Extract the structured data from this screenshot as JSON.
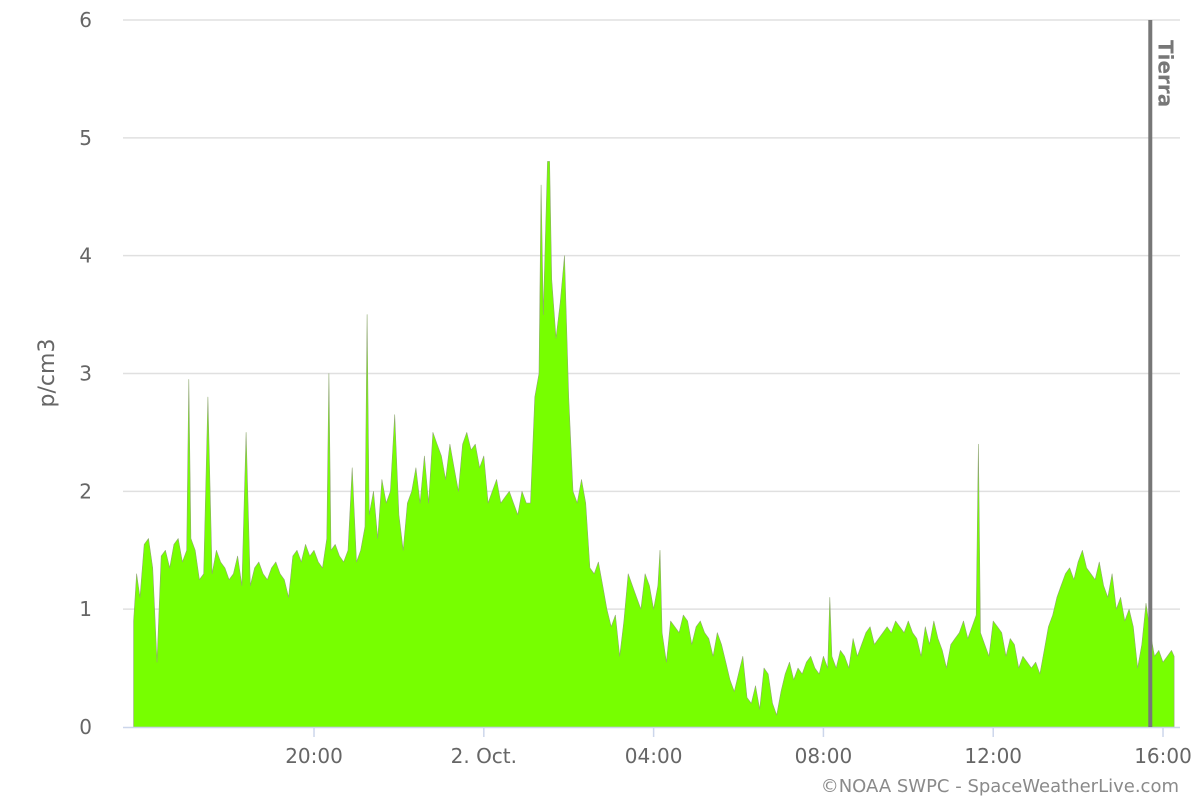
{
  "chart_data": {
    "type": "area",
    "title": "",
    "xlabel": "",
    "ylabel": "p/cm3",
    "ylim": [
      0,
      6
    ],
    "y_ticks": [
      "0",
      "1",
      "2",
      "3",
      "4",
      "5",
      "6"
    ],
    "x_range_hours": [
      15.5,
      40.4
    ],
    "x_ticks": [
      {
        "label": "20:00",
        "hour": 20
      },
      {
        "label": "2. Oct.",
        "hour": 24
      },
      {
        "label": "04:00",
        "hour": 28
      },
      {
        "label": "08:00",
        "hour": 32
      },
      {
        "label": "12:00",
        "hour": 36
      },
      {
        "label": "16:00",
        "hour": 40
      }
    ],
    "grid": true,
    "legend": "none",
    "series": [
      {
        "color": "#77ff00",
        "data": [
          [
            15.75,
            0.9
          ],
          [
            15.82,
            1.3
          ],
          [
            15.9,
            1.1
          ],
          [
            16.0,
            1.55
          ],
          [
            16.1,
            1.6
          ],
          [
            16.2,
            1.35
          ],
          [
            16.3,
            0.55
          ],
          [
            16.4,
            1.45
          ],
          [
            16.5,
            1.5
          ],
          [
            16.6,
            1.35
          ],
          [
            16.7,
            1.55
          ],
          [
            16.8,
            1.6
          ],
          [
            16.9,
            1.4
          ],
          [
            17.0,
            1.5
          ],
          [
            17.05,
            2.95
          ],
          [
            17.1,
            1.6
          ],
          [
            17.2,
            1.5
          ],
          [
            17.3,
            1.25
          ],
          [
            17.4,
            1.3
          ],
          [
            17.5,
            2.8
          ],
          [
            17.6,
            1.3
          ],
          [
            17.7,
            1.5
          ],
          [
            17.8,
            1.4
          ],
          [
            17.9,
            1.35
          ],
          [
            18.0,
            1.25
          ],
          [
            18.1,
            1.3
          ],
          [
            18.2,
            1.45
          ],
          [
            18.3,
            1.2
          ],
          [
            18.4,
            2.5
          ],
          [
            18.5,
            1.2
          ],
          [
            18.6,
            1.35
          ],
          [
            18.7,
            1.4
          ],
          [
            18.8,
            1.3
          ],
          [
            18.9,
            1.25
          ],
          [
            19.0,
            1.35
          ],
          [
            19.1,
            1.4
          ],
          [
            19.2,
            1.3
          ],
          [
            19.3,
            1.25
          ],
          [
            19.4,
            1.1
          ],
          [
            19.5,
            1.45
          ],
          [
            19.6,
            1.5
          ],
          [
            19.7,
            1.4
          ],
          [
            19.8,
            1.55
          ],
          [
            19.9,
            1.45
          ],
          [
            20.0,
            1.5
          ],
          [
            20.1,
            1.4
          ],
          [
            20.2,
            1.35
          ],
          [
            20.3,
            1.6
          ],
          [
            20.35,
            3.0
          ],
          [
            20.4,
            1.5
          ],
          [
            20.5,
            1.55
          ],
          [
            20.6,
            1.45
          ],
          [
            20.7,
            1.4
          ],
          [
            20.8,
            1.5
          ],
          [
            20.9,
            2.2
          ],
          [
            21.0,
            1.4
          ],
          [
            21.1,
            1.5
          ],
          [
            21.2,
            1.7
          ],
          [
            21.25,
            3.5
          ],
          [
            21.3,
            1.8
          ],
          [
            21.4,
            2.0
          ],
          [
            21.5,
            1.6
          ],
          [
            21.6,
            2.1
          ],
          [
            21.7,
            1.9
          ],
          [
            21.8,
            2.0
          ],
          [
            21.9,
            2.65
          ],
          [
            22.0,
            1.8
          ],
          [
            22.1,
            1.5
          ],
          [
            22.2,
            1.9
          ],
          [
            22.3,
            2.0
          ],
          [
            22.4,
            2.2
          ],
          [
            22.5,
            1.9
          ],
          [
            22.6,
            2.3
          ],
          [
            22.7,
            1.9
          ],
          [
            22.8,
            2.5
          ],
          [
            22.9,
            2.4
          ],
          [
            23.0,
            2.3
          ],
          [
            23.1,
            2.1
          ],
          [
            23.2,
            2.4
          ],
          [
            23.3,
            2.2
          ],
          [
            23.4,
            2.0
          ],
          [
            23.5,
            2.4
          ],
          [
            23.6,
            2.5
          ],
          [
            23.7,
            2.35
          ],
          [
            23.8,
            2.4
          ],
          [
            23.9,
            2.2
          ],
          [
            24.0,
            2.3
          ],
          [
            24.1,
            1.9
          ],
          [
            24.2,
            2.0
          ],
          [
            24.3,
            2.1
          ],
          [
            24.4,
            1.9
          ],
          [
            24.5,
            1.95
          ],
          [
            24.6,
            2.0
          ],
          [
            24.7,
            1.9
          ],
          [
            24.8,
            1.8
          ],
          [
            24.9,
            2.0
          ],
          [
            25.0,
            1.9
          ],
          [
            25.1,
            1.9
          ],
          [
            25.2,
            2.8
          ],
          [
            25.3,
            3.0
          ],
          [
            25.35,
            4.6
          ],
          [
            25.4,
            3.5
          ],
          [
            25.5,
            4.8
          ],
          [
            25.55,
            4.8
          ],
          [
            25.6,
            3.8
          ],
          [
            25.7,
            3.3
          ],
          [
            25.8,
            3.6
          ],
          [
            25.9,
            4.0
          ],
          [
            26.0,
            2.8
          ],
          [
            26.1,
            2.0
          ],
          [
            26.2,
            1.9
          ],
          [
            26.3,
            2.1
          ],
          [
            26.4,
            1.9
          ],
          [
            26.5,
            1.35
          ],
          [
            26.6,
            1.3
          ],
          [
            26.7,
            1.4
          ],
          [
            26.8,
            1.2
          ],
          [
            26.9,
            1.0
          ],
          [
            27.0,
            0.85
          ],
          [
            27.1,
            0.95
          ],
          [
            27.2,
            0.6
          ],
          [
            27.3,
            0.9
          ],
          [
            27.4,
            1.3
          ],
          [
            27.5,
            1.2
          ],
          [
            27.6,
            1.1
          ],
          [
            27.7,
            1.0
          ],
          [
            27.8,
            1.3
          ],
          [
            27.9,
            1.2
          ],
          [
            28.0,
            1.0
          ],
          [
            28.1,
            1.2
          ],
          [
            28.15,
            1.5
          ],
          [
            28.2,
            0.8
          ],
          [
            28.3,
            0.55
          ],
          [
            28.4,
            0.9
          ],
          [
            28.5,
            0.85
          ],
          [
            28.6,
            0.8
          ],
          [
            28.7,
            0.95
          ],
          [
            28.8,
            0.9
          ],
          [
            28.9,
            0.7
          ],
          [
            29.0,
            0.85
          ],
          [
            29.1,
            0.9
          ],
          [
            29.2,
            0.8
          ],
          [
            29.3,
            0.75
          ],
          [
            29.4,
            0.6
          ],
          [
            29.5,
            0.8
          ],
          [
            29.6,
            0.7
          ],
          [
            29.7,
            0.55
          ],
          [
            29.8,
            0.4
          ],
          [
            29.9,
            0.3
          ],
          [
            30.0,
            0.45
          ],
          [
            30.1,
            0.6
          ],
          [
            30.2,
            0.25
          ],
          [
            30.3,
            0.2
          ],
          [
            30.4,
            0.35
          ],
          [
            30.5,
            0.15
          ],
          [
            30.6,
            0.5
          ],
          [
            30.7,
            0.45
          ],
          [
            30.8,
            0.2
          ],
          [
            30.9,
            0.1
          ],
          [
            31.0,
            0.3
          ],
          [
            31.1,
            0.45
          ],
          [
            31.2,
            0.55
          ],
          [
            31.3,
            0.4
          ],
          [
            31.4,
            0.5
          ],
          [
            31.5,
            0.45
          ],
          [
            31.6,
            0.55
          ],
          [
            31.7,
            0.6
          ],
          [
            31.8,
            0.5
          ],
          [
            31.9,
            0.45
          ],
          [
            32.0,
            0.6
          ],
          [
            32.1,
            0.5
          ],
          [
            32.15,
            1.1
          ],
          [
            32.2,
            0.6
          ],
          [
            32.3,
            0.5
          ],
          [
            32.4,
            0.65
          ],
          [
            32.5,
            0.6
          ],
          [
            32.6,
            0.5
          ],
          [
            32.7,
            0.75
          ],
          [
            32.8,
            0.6
          ],
          [
            32.9,
            0.7
          ],
          [
            33.0,
            0.8
          ],
          [
            33.1,
            0.85
          ],
          [
            33.2,
            0.7
          ],
          [
            33.3,
            0.75
          ],
          [
            33.4,
            0.8
          ],
          [
            33.5,
            0.85
          ],
          [
            33.6,
            0.8
          ],
          [
            33.7,
            0.9
          ],
          [
            33.8,
            0.85
          ],
          [
            33.9,
            0.8
          ],
          [
            34.0,
            0.9
          ],
          [
            34.1,
            0.8
          ],
          [
            34.2,
            0.75
          ],
          [
            34.3,
            0.6
          ],
          [
            34.4,
            0.85
          ],
          [
            34.5,
            0.7
          ],
          [
            34.6,
            0.9
          ],
          [
            34.7,
            0.75
          ],
          [
            34.8,
            0.65
          ],
          [
            34.9,
            0.5
          ],
          [
            35.0,
            0.7
          ],
          [
            35.1,
            0.75
          ],
          [
            35.2,
            0.8
          ],
          [
            35.3,
            0.9
          ],
          [
            35.4,
            0.75
          ],
          [
            35.5,
            0.85
          ],
          [
            35.6,
            0.95
          ],
          [
            35.65,
            2.4
          ],
          [
            35.7,
            0.8
          ],
          [
            35.8,
            0.7
          ],
          [
            35.9,
            0.6
          ],
          [
            36.0,
            0.9
          ],
          [
            36.1,
            0.85
          ],
          [
            36.2,
            0.8
          ],
          [
            36.3,
            0.6
          ],
          [
            36.4,
            0.75
          ],
          [
            36.5,
            0.7
          ],
          [
            36.6,
            0.5
          ],
          [
            36.7,
            0.6
          ],
          [
            36.8,
            0.55
          ],
          [
            36.9,
            0.5
          ],
          [
            37.0,
            0.55
          ],
          [
            37.1,
            0.45
          ],
          [
            37.2,
            0.65
          ],
          [
            37.3,
            0.85
          ],
          [
            37.4,
            0.95
          ],
          [
            37.5,
            1.1
          ],
          [
            37.6,
            1.2
          ],
          [
            37.7,
            1.3
          ],
          [
            37.8,
            1.35
          ],
          [
            37.9,
            1.25
          ],
          [
            38.0,
            1.4
          ],
          [
            38.1,
            1.5
          ],
          [
            38.2,
            1.35
          ],
          [
            38.3,
            1.3
          ],
          [
            38.4,
            1.25
          ],
          [
            38.5,
            1.4
          ],
          [
            38.6,
            1.2
          ],
          [
            38.7,
            1.1
          ],
          [
            38.8,
            1.3
          ],
          [
            38.9,
            1.0
          ],
          [
            39.0,
            1.1
          ],
          [
            39.1,
            0.9
          ],
          [
            39.2,
            1.0
          ],
          [
            39.3,
            0.85
          ],
          [
            39.4,
            0.5
          ],
          [
            39.5,
            0.7
          ],
          [
            39.6,
            1.05
          ],
          [
            39.7,
            0.8
          ],
          [
            39.8,
            0.6
          ],
          [
            39.9,
            0.65
          ],
          [
            40.0,
            0.55
          ],
          [
            40.1,
            0.6
          ],
          [
            40.2,
            0.65
          ],
          [
            40.26,
            0.6
          ]
        ]
      }
    ],
    "annotations": [
      {
        "type": "vertical_line",
        "hour": 39.7,
        "label": "Tierra",
        "color": "#777777"
      }
    ]
  },
  "credits": "©NOAA SWPC - SpaceWeatherLive.com"
}
